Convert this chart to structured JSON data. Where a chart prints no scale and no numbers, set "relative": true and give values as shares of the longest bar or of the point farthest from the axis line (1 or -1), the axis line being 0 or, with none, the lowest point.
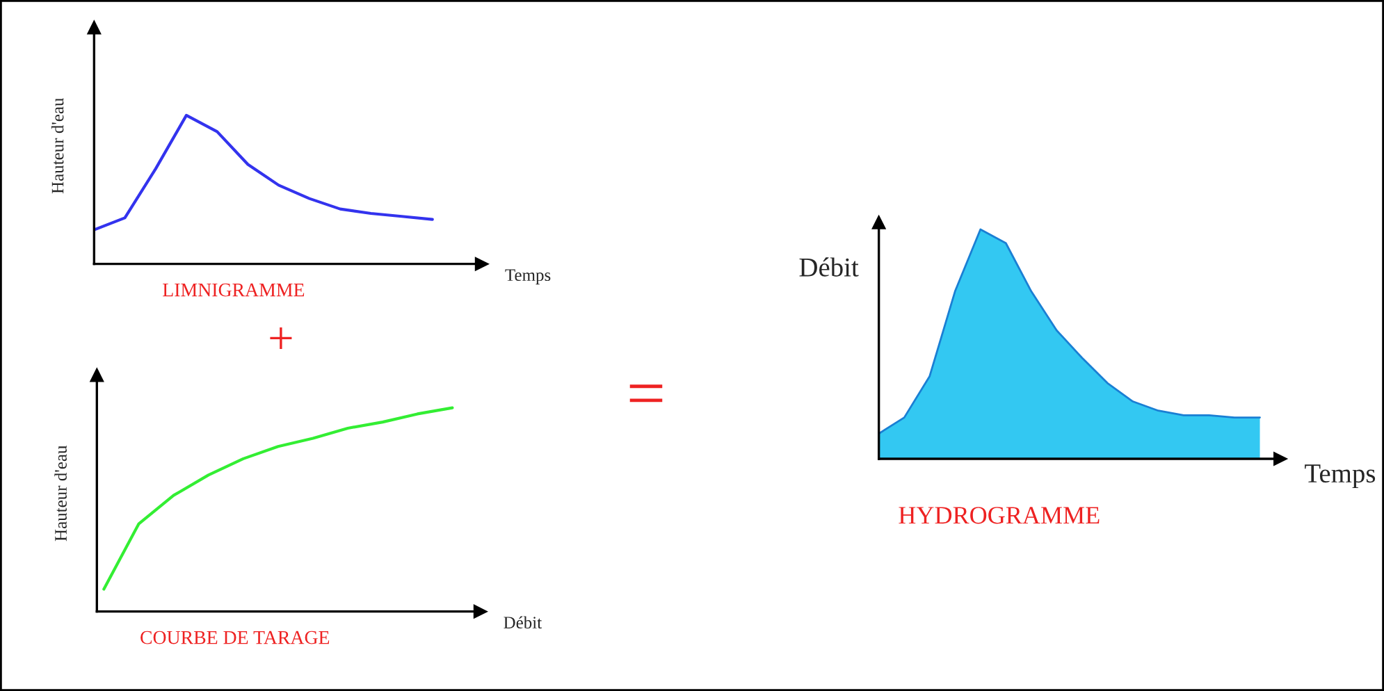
{
  "chart_data": [
    {
      "type": "line",
      "title": "LIMNIGRAMME",
      "xlabel": "Temps",
      "ylabel": "Hauteur d'eau",
      "relative": true,
      "categories": [
        null,
        null,
        null,
        null,
        null,
        null,
        null,
        null,
        null,
        null,
        null,
        null
      ],
      "series": [
        {
          "color": "#3333ee",
          "values": [
            0.23,
            0.31,
            0.64,
            1,
            0.89,
            0.67,
            0.53,
            0.44,
            0.37,
            0.34,
            0.32,
            0.3
          ]
        }
      ]
    },
    {
      "type": "line",
      "title": "COURBE DE TARAGE",
      "xlabel": "Débit",
      "ylabel": "Hauteur d'eau",
      "relative": true,
      "annotations": [
        "+"
      ],
      "categories": [
        null,
        null,
        null,
        null,
        null,
        null,
        null,
        null,
        null,
        null,
        null
      ],
      "series": [
        {
          "color": "#33ee33",
          "values": [
            0.11,
            0.43,
            0.57,
            0.67,
            0.75,
            0.81,
            0.85,
            0.9,
            0.93,
            0.97,
            1
          ]
        }
      ]
    },
    {
      "type": "area",
      "title": "HYDROGRAMME",
      "xlabel": "Temps",
      "ylabel": "Débit",
      "relative": true,
      "annotations": [
        "="
      ],
      "categories": [
        null,
        null,
        null,
        null,
        null,
        null,
        null,
        null,
        null,
        null,
        null,
        null,
        null,
        null,
        null,
        null
      ],
      "series": [
        {
          "color": "#33c8f2",
          "values": [
            0.11,
            0.18,
            0.36,
            0.73,
            1,
            0.94,
            0.73,
            0.56,
            0.44,
            0.33,
            0.25,
            0.21,
            0.19,
            0.19,
            0.18,
            0.18
          ]
        }
      ]
    }
  ]
}
